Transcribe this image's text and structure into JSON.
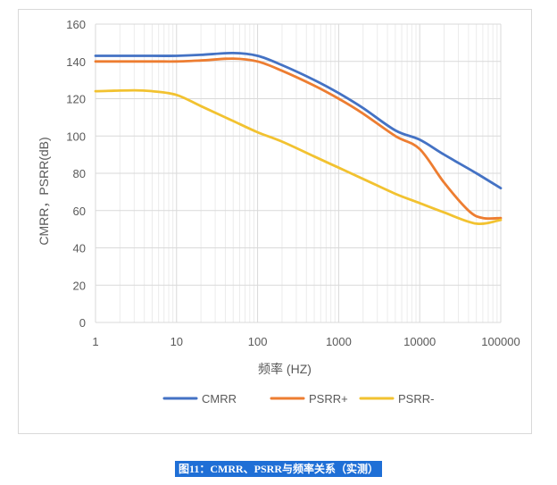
{
  "chart_data": {
    "type": "line",
    "title": "",
    "xlabel": "频率 (HZ)",
    "ylabel": "CMRR，PSRR(dB)",
    "xscale": "log",
    "xlim": [
      1,
      100000
    ],
    "ylim": [
      0,
      160
    ],
    "x_ticks": [
      "1",
      "10",
      "100",
      "1000",
      "10000",
      "100000"
    ],
    "y_ticks": [
      "0",
      "20",
      "40",
      "60",
      "80",
      "100",
      "120",
      "140",
      "160"
    ],
    "grid": "major horizontal and log minor vertical gridlines",
    "legend_position": "bottom",
    "series": [
      {
        "name": "CMRR",
        "color": "#4472c4",
        "points": [
          [
            1,
            143
          ],
          [
            5,
            143
          ],
          [
            10,
            143
          ],
          [
            20,
            143.5
          ],
          [
            50,
            144.5
          ],
          [
            100,
            143
          ],
          [
            200,
            138
          ],
          [
            500,
            130
          ],
          [
            1000,
            123
          ],
          [
            2000,
            115
          ],
          [
            5000,
            103
          ],
          [
            10000,
            98
          ],
          [
            20000,
            90
          ],
          [
            50000,
            80
          ],
          [
            100000,
            72
          ]
        ]
      },
      {
        "name": "PSRR+",
        "color": "#ed7d31",
        "points": [
          [
            1,
            140
          ],
          [
            5,
            140
          ],
          [
            10,
            140
          ],
          [
            20,
            140.5
          ],
          [
            50,
            141.5
          ],
          [
            100,
            140
          ],
          [
            200,
            135
          ],
          [
            500,
            127
          ],
          [
            1000,
            120
          ],
          [
            2000,
            112
          ],
          [
            5000,
            100
          ],
          [
            10000,
            93
          ],
          [
            20000,
            75
          ],
          [
            40000,
            60
          ],
          [
            60000,
            56
          ],
          [
            100000,
            56
          ]
        ]
      },
      {
        "name": "PSRR-",
        "color": "#f2c230",
        "points": [
          [
            1,
            124
          ],
          [
            3,
            124.5
          ],
          [
            5,
            124
          ],
          [
            10,
            122
          ],
          [
            20,
            116
          ],
          [
            50,
            108
          ],
          [
            100,
            102
          ],
          [
            200,
            97
          ],
          [
            500,
            89
          ],
          [
            1000,
            83
          ],
          [
            2000,
            77
          ],
          [
            5000,
            69
          ],
          [
            10000,
            64
          ],
          [
            20000,
            59
          ],
          [
            50000,
            53
          ],
          [
            100000,
            55
          ]
        ]
      }
    ]
  },
  "caption": "图11：CMRR、PSRR与频率关系（实测）"
}
